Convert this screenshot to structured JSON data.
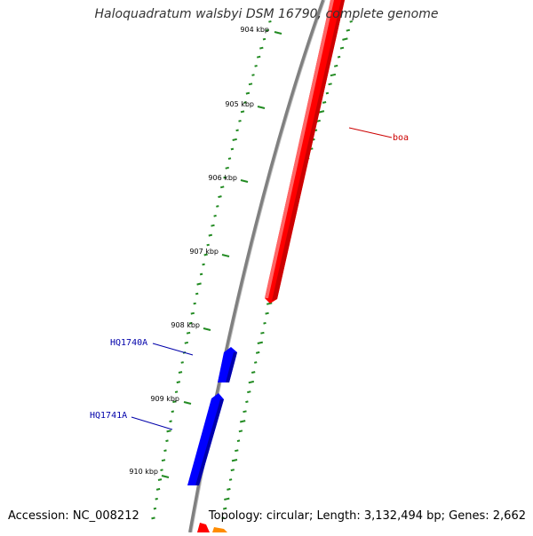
{
  "title": "Haloquadratum walsbyi DSM 16790, complete genome",
  "footer": {
    "accession": "Accession: NC_008212",
    "summary": "Topology: circular; Length: 3,132,494 bp; Genes: 2,662"
  },
  "colors": {
    "backbone": "#888888",
    "gene_forward": "#ff0000",
    "gene_reverse": "#0000ff",
    "gene_partial": "#ff8c00",
    "gc_ticks": "#228b22",
    "label_forward": "#cc0000",
    "label_reverse": "#0000aa"
  },
  "ruler": {
    "labels": [
      "904 kbp",
      "905 kbp",
      "906 kbp",
      "907 kbp",
      "908 kbp",
      "909 kbp",
      "910 kbp"
    ]
  },
  "features": [
    {
      "name": "boa",
      "strand": "forward",
      "color": "#ff0000"
    },
    {
      "name": "HQ1740A",
      "strand": "reverse",
      "color": "#0000ff"
    },
    {
      "name": "HQ1741A",
      "strand": "reverse",
      "color": "#0000ff"
    }
  ]
}
